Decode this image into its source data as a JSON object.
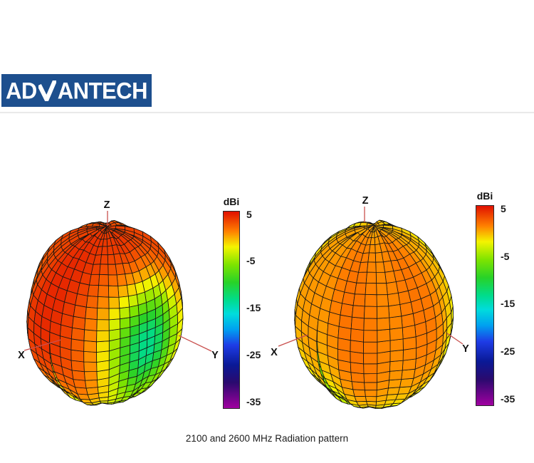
{
  "page": {
    "background_color": "#ffffff"
  },
  "logo": {
    "brand": "ADVANTECH",
    "text_pre": "AD",
    "text_post": "ANTECH",
    "bg_color": "#1d4f8e",
    "text_color": "#ffffff"
  },
  "caption": "2100 and 2600 MHz Radiation pattern",
  "chart_data": {
    "type": "surface",
    "subtype": "3d-antenna-radiation-pattern",
    "title": "2100 and 2600 MHz Radiation pattern",
    "axis_color": "#c9504e",
    "mesh_line_color": "#151515",
    "colorbar": {
      "title": "dBi",
      "ticks": [
        5,
        -5,
        -15,
        -25,
        -35
      ],
      "top_value": 5.7,
      "bottom_value": -36.5,
      "gradient_stops": [
        {
          "t": 0.0,
          "color": "#e01000"
        },
        {
          "t": 0.1,
          "color": "#ff7f00"
        },
        {
          "t": 0.18,
          "color": "#f4f400"
        },
        {
          "t": 0.27,
          "color": "#7ee400"
        },
        {
          "t": 0.36,
          "color": "#28d228"
        },
        {
          "t": 0.45,
          "color": "#00dc8c"
        },
        {
          "t": 0.52,
          "color": "#00dcdc"
        },
        {
          "t": 0.6,
          "color": "#00a0f0"
        },
        {
          "t": 0.68,
          "color": "#1e3ce6"
        },
        {
          "t": 0.78,
          "color": "#0a1996"
        },
        {
          "t": 0.87,
          "color": "#2a0a6e"
        },
        {
          "t": 1.0,
          "color": "#a000a0"
        }
      ]
    },
    "plots": [
      {
        "name": "2100 MHz pattern",
        "axis_labels": {
          "x": "X",
          "y": "Y",
          "z": "Z"
        },
        "approx_gain_range_dbi": [
          -13,
          5
        ],
        "description": "Near-spherical lobe: peak ~5 dBi (red) over the upper-left hemisphere, dipping to ~-13 dBi (green/cyan dimple) toward the +Y axis; yellow-green underside."
      },
      {
        "name": "2600 MHz pattern",
        "axis_labels": {
          "x": "X",
          "y": "Y",
          "z": "Z"
        },
        "approx_gain_range_dbi": [
          -8,
          3
        ],
        "description": "Near-omnidirectional lobe: ~2 dBi (orange) across the front face, falling to ~-2...-7 dBi (yellow/green) at the rim with small green patches."
      }
    ]
  }
}
